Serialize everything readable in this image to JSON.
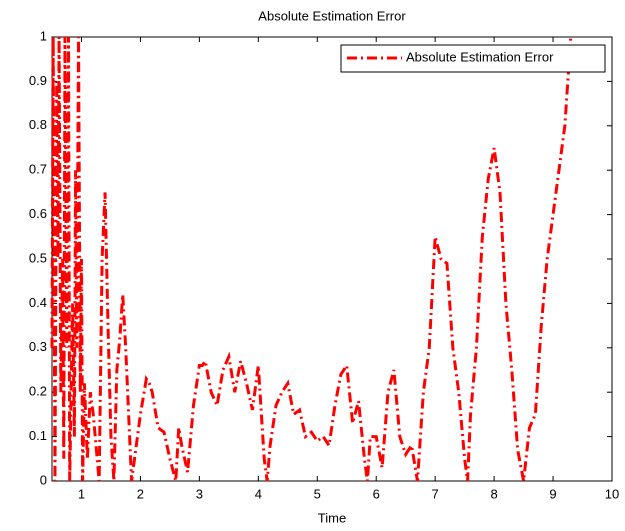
{
  "chart_data": {
    "type": "line",
    "title": "Absolute Estimation Error",
    "x_label": "Time",
    "x": [
      0.5,
      0.52,
      0.55,
      0.58,
      0.6,
      0.62,
      0.65,
      0.68,
      0.7,
      0.72,
      0.75,
      0.78,
      0.8,
      0.85,
      0.88,
      0.9,
      0.92,
      0.95,
      0.98,
      1.0,
      1.02,
      1.05,
      1.1,
      1.15,
      1.2,
      1.3,
      1.35,
      1.4,
      1.45,
      1.5,
      1.55,
      1.6,
      1.65,
      1.7,
      1.75,
      1.8,
      1.85,
      1.9,
      2.0,
      2.1,
      2.15,
      2.2,
      2.3,
      2.4,
      2.5,
      2.6,
      2.65,
      2.7,
      2.8,
      2.9,
      3.0,
      3.05,
      3.1,
      3.2,
      3.3,
      3.4,
      3.5,
      3.6,
      3.7,
      3.8,
      3.9,
      4.0,
      4.1,
      4.15,
      4.2,
      4.3,
      4.4,
      4.5,
      4.6,
      4.7,
      4.8,
      4.9,
      5.0,
      5.1,
      5.2,
      5.3,
      5.4,
      5.5,
      5.6,
      5.7,
      5.8,
      5.85,
      5.9,
      6.0,
      6.1,
      6.2,
      6.3,
      6.4,
      6.5,
      6.6,
      6.7,
      6.8,
      6.9,
      7.0,
      7.1,
      7.2,
      7.3,
      7.4,
      7.5,
      7.55,
      7.6,
      7.7,
      7.8,
      7.9,
      8.0,
      8.1,
      8.2,
      8.3,
      8.4,
      8.5,
      8.6,
      8.7,
      8.8,
      8.9,
      9.0,
      9.1,
      9.2,
      9.3
    ],
    "series": [
      {
        "name": "Absolute Estimation Error",
        "color": "#ff0000",
        "values": [
          0.3,
          1.0,
          0.0,
          0.9,
          0.5,
          1.0,
          0.2,
          0.5,
          0.05,
          1.0,
          0.3,
          1.0,
          0.0,
          0.4,
          0.1,
          0.7,
          0.3,
          1.0,
          0.2,
          0.5,
          0.0,
          0.22,
          0.05,
          0.2,
          0.15,
          0.0,
          0.5,
          0.65,
          0.35,
          0.1,
          0.0,
          0.25,
          0.32,
          0.42,
          0.3,
          0.15,
          0.0,
          0.05,
          0.15,
          0.23,
          0.22,
          0.2,
          0.12,
          0.11,
          0.05,
          0.0,
          0.12,
          0.08,
          0.02,
          0.17,
          0.26,
          0.26,
          0.27,
          0.2,
          0.17,
          0.25,
          0.28,
          0.2,
          0.27,
          0.22,
          0.16,
          0.26,
          0.05,
          0.0,
          0.08,
          0.17,
          0.2,
          0.22,
          0.15,
          0.16,
          0.1,
          0.11,
          0.09,
          0.1,
          0.08,
          0.17,
          0.24,
          0.26,
          0.13,
          0.18,
          0.05,
          0.0,
          0.1,
          0.1,
          0.03,
          0.2,
          0.25,
          0.1,
          0.06,
          0.08,
          0.0,
          0.2,
          0.3,
          0.55,
          0.5,
          0.49,
          0.3,
          0.2,
          0.05,
          0.0,
          0.15,
          0.3,
          0.55,
          0.68,
          0.75,
          0.65,
          0.4,
          0.25,
          0.07,
          0.0,
          0.12,
          0.15,
          0.35,
          0.5,
          0.6,
          0.7,
          0.8,
          1.0
        ]
      }
    ],
    "xlim": [
      0.5,
      10
    ],
    "xticks": [
      1,
      2,
      3,
      4,
      5,
      6,
      7,
      8,
      9,
      10
    ],
    "ylim": [
      0,
      1
    ],
    "yticks": [
      0,
      0.1,
      0.2,
      0.3,
      0.4,
      0.5,
      0.6,
      0.7,
      0.8,
      0.9,
      1
    ],
    "legend": "top-right"
  }
}
